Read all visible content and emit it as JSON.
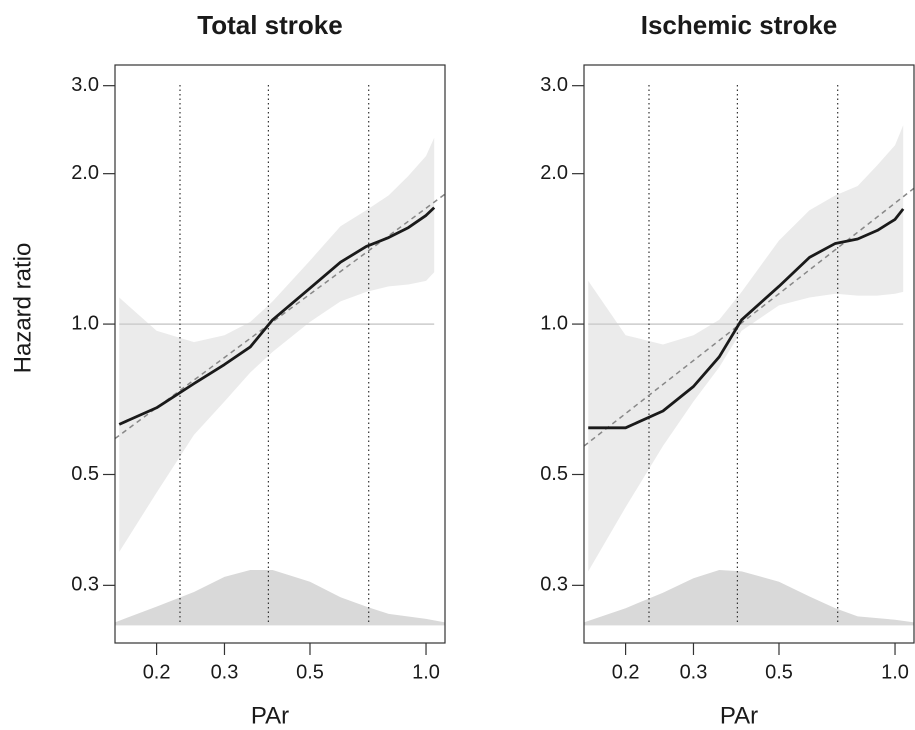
{
  "chart_data": [
    {
      "type": "line",
      "title": "Total stroke",
      "xlabel": "PAr",
      "ylabel": "Hazard ratio",
      "x_log": true,
      "y_log": true,
      "xlim": [
        0.156,
        1.12
      ],
      "ylim": [
        0.23,
        3.3
      ],
      "xticks": [
        0.2,
        0.3,
        0.5,
        {
          "value": 1,
          "label": "1.0"
        }
      ],
      "yticks": [
        {
          "value": 0.3,
          "label": "0.3"
        },
        {
          "value": 0.5,
          "label": "0.5"
        },
        {
          "value": 1,
          "label": "1.0"
        },
        {
          "value": 2,
          "label": "2.0"
        },
        {
          "value": 3,
          "label": "3.0"
        }
      ],
      "reference_line": 1,
      "vlines": [
        0.23,
        0.39,
        0.71
      ],
      "x": [
        0.16,
        0.2,
        0.25,
        0.3,
        0.35,
        0.4,
        0.5,
        0.6,
        0.7,
        0.8,
        0.9,
        1.0,
        1.05
      ],
      "estimate": [
        0.63,
        0.68,
        0.76,
        0.83,
        0.9,
        1.02,
        1.18,
        1.33,
        1.43,
        1.49,
        1.56,
        1.65,
        1.71
      ],
      "ci_upper": [
        1.13,
        0.97,
        0.92,
        0.95,
        1.01,
        1.11,
        1.34,
        1.57,
        1.69,
        1.81,
        1.98,
        2.17,
        2.36
      ],
      "ci_lower": [
        0.35,
        0.46,
        0.6,
        0.7,
        0.8,
        0.88,
        1.01,
        1.11,
        1.16,
        1.19,
        1.2,
        1.22,
        1.27
      ],
      "fit_line": {
        "x": [
          0.156,
          1.12
        ],
        "values": [
          0.59,
          1.82
        ]
      },
      "density": {
        "x": [
          0.156,
          0.2,
          0.25,
          0.3,
          0.35,
          0.4,
          0.5,
          0.6,
          0.7,
          0.8,
          1.0,
          1.12
        ],
        "values": [
          0.253,
          0.272,
          0.291,
          0.312,
          0.322,
          0.322,
          0.305,
          0.284,
          0.272,
          0.263,
          0.257,
          0.253
        ],
        "base": 0.25
      }
    },
    {
      "type": "line",
      "title": "Ischemic stroke",
      "xlabel": "PAr",
      "x_log": true,
      "y_log": true,
      "xlim": [
        0.156,
        1.12
      ],
      "ylim": [
        0.23,
        3.3
      ],
      "xticks": [
        0.2,
        0.3,
        0.5,
        {
          "value": 1,
          "label": "1.0"
        }
      ],
      "yticks": [
        {
          "value": 0.3,
          "label": "0.3"
        },
        {
          "value": 0.5,
          "label": "0.5"
        },
        {
          "value": 1,
          "label": "1.0"
        },
        {
          "value": 2,
          "label": "2.0"
        },
        {
          "value": 3,
          "label": "3.0"
        }
      ],
      "reference_line": 1,
      "vlines": [
        0.23,
        0.39,
        0.71
      ],
      "x": [
        0.16,
        0.2,
        0.25,
        0.3,
        0.35,
        0.4,
        0.5,
        0.6,
        0.7,
        0.8,
        0.9,
        1.0,
        1.05
      ],
      "estimate": [
        0.62,
        0.62,
        0.67,
        0.75,
        0.86,
        1.02,
        1.19,
        1.36,
        1.45,
        1.48,
        1.54,
        1.62,
        1.7
      ],
      "ci_upper": [
        1.22,
        0.95,
        0.91,
        0.95,
        1.02,
        1.16,
        1.47,
        1.69,
        1.81,
        1.89,
        2.08,
        2.28,
        2.5
      ],
      "ci_lower": [
        0.32,
        0.43,
        0.57,
        0.7,
        0.82,
        0.97,
        1.09,
        1.13,
        1.15,
        1.14,
        1.14,
        1.15,
        1.16
      ],
      "fit_line": {
        "x": [
          0.156,
          1.12
        ],
        "values": [
          0.57,
          1.87
        ]
      },
      "density": {
        "x": [
          0.156,
          0.2,
          0.25,
          0.3,
          0.35,
          0.4,
          0.5,
          0.6,
          0.7,
          0.8,
          1.0,
          1.12
        ],
        "values": [
          0.253,
          0.27,
          0.29,
          0.31,
          0.322,
          0.32,
          0.305,
          0.285,
          0.27,
          0.26,
          0.256,
          0.253
        ],
        "base": 0.25
      }
    }
  ]
}
